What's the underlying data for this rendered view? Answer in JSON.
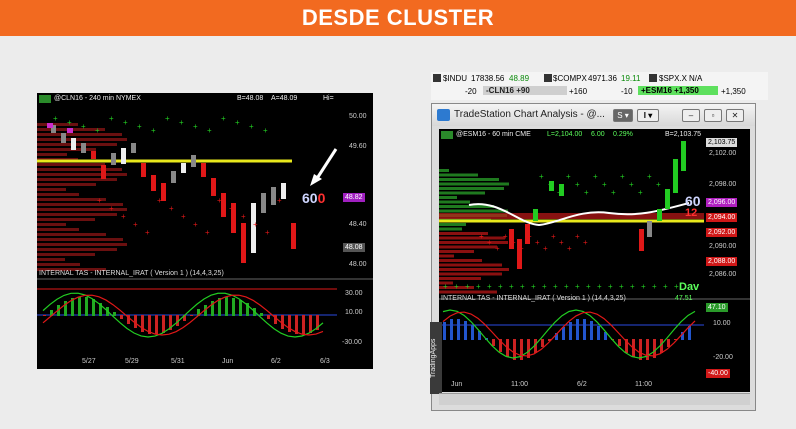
{
  "banner": {
    "title": "DESDE CLUSTER"
  },
  "left_chart": {
    "symbol_header": "@CLN16 - 240 min  NYMEX",
    "bid": "B=48.08",
    "ask": "A=48.09",
    "hi_label": "Hi=",
    "price_labels": [
      "50.00",
      "49.60",
      "48.82",
      "48.40",
      "48.08",
      "48.00"
    ],
    "overlay_number_white": "60",
    "overlay_number_red": "0",
    "indicator_title": "INTERNAL TAS - INTERNAL_IRAT ( Version 1 ) (14,4,3,25)",
    "indicator_labels": [
      "30.00",
      "10.00",
      "-30.00"
    ],
    "date_labels": [
      "5/27",
      "5/29",
      "5/31",
      "Jun",
      "6/2",
      "6/3"
    ],
    "colors": {
      "yellow_line": "#e8e81c",
      "red": "#e01818",
      "green": "#22cc22",
      "magenta": "#cc2ccc"
    }
  },
  "ticker_bar": {
    "indu_label": "$INDU",
    "indu_value": "17838.56",
    "indu_change": "48.89",
    "compx_label": "$COMPX",
    "compx_value": "4971.36",
    "compx_change": "19.11",
    "spx_label": "$SPX.X",
    "spx_value": "N/A",
    "cl_left": "-20",
    "cl_box": "-CLN16 +90",
    "cl_right": "+160",
    "es_left": "-10",
    "es_box": "+ESM16 +1,350",
    "es_right": "+1,350"
  },
  "window": {
    "title": "TradeStation Chart Analysis - @...",
    "symbol_header": "@ESM16 - 60 min  CME",
    "last": "L=2,104.00",
    "change": "6.00",
    "pct": "0.29%",
    "bid": "B=2,103.75",
    "price_labels": [
      "2,103.75",
      "2,102.00",
      "2,098.00",
      "2,096.00",
      "2,094.00",
      "2,092.00",
      "2,090.00",
      "2,088.00",
      "2,086.00"
    ],
    "overlay_number": "60",
    "overlay_number2": "12",
    "overlay_text": "Dav",
    "indicator_title": "INTERNAL TAS - INTERNAL_IRAT ( Version 1 ) (14,4,3,25)",
    "indicator_value": "47.51",
    "indicator_labels": [
      "47.10",
      "10.00",
      "-20.00",
      "-40.00"
    ],
    "date_labels": [
      "Jun",
      "11:00",
      "6/2",
      "11:00"
    ],
    "side_tab": "TradingApps"
  }
}
